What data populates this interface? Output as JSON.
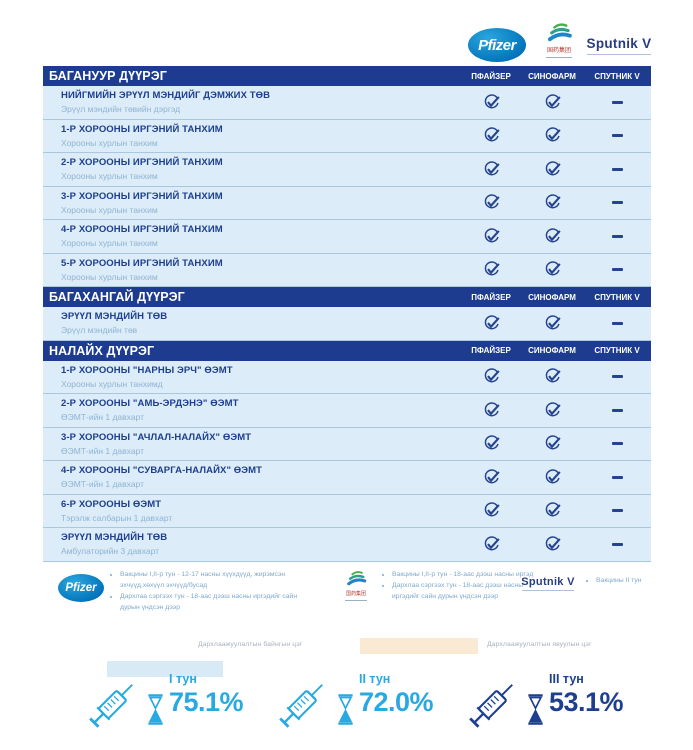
{
  "logos": {
    "pfizer": {
      "label": "Pfizer"
    },
    "sinopharm": {
      "label": "国药集团"
    },
    "sputnik": {
      "label": "Sputnik V"
    }
  },
  "columns": [
    "ПФАЙЗЕР",
    "СИНОФАРМ",
    "СПУТНИК V"
  ],
  "sections": [
    {
      "title": "БАГАНУУР ДҮҮРЭГ",
      "rows": [
        {
          "name": "НИЙГМИЙН ЭРҮҮЛ МЭНДИЙГ ДЭМЖИХ ТӨВ",
          "location": "Эрүүл мэндийн төвийн дэргэд",
          "pfizer": true,
          "sinopharm": true,
          "sputnik": false
        },
        {
          "name": "1-Р ХОРООНЫ ИРГЭНИЙ ТАНХИМ",
          "location": "Хорооны хурлын танхим",
          "pfizer": true,
          "sinopharm": true,
          "sputnik": false
        },
        {
          "name": "2-Р ХОРООНЫ ИРГЭНИЙ ТАНХИМ",
          "location": "Хорооны хурлын танхим",
          "pfizer": true,
          "sinopharm": true,
          "sputnik": false
        },
        {
          "name": "3-Р ХОРООНЫ ИРГЭНИЙ ТАНХИМ",
          "location": "Хорооны хурлын танхим",
          "pfizer": true,
          "sinopharm": true,
          "sputnik": false
        },
        {
          "name": "4-Р ХОРООНЫ ИРГЭНИЙ ТАНХИМ",
          "location": "Хорооны хурлын танхим",
          "pfizer": true,
          "sinopharm": true,
          "sputnik": false
        },
        {
          "name": "5-Р ХОРООНЫ ИРГЭНИЙ ТАНХИМ",
          "location": "Хорооны хурлын танхим",
          "pfizer": true,
          "sinopharm": true,
          "sputnik": false
        }
      ]
    },
    {
      "title": "БАГАХАНГАЙ ДҮҮРЭГ",
      "rows": [
        {
          "name": "ЭРҮҮЛ МЭНДИЙН ТӨВ",
          "location": "Эрүүл мэндийн төв",
          "pfizer": true,
          "sinopharm": true,
          "sputnik": false
        }
      ]
    },
    {
      "title": "НАЛАЙХ ДҮҮРЭГ",
      "rows": [
        {
          "name": "1-Р ХОРООНЫ \"НАРНЫ ЭРЧ\" ӨЭМТ",
          "location": "Хорооны хурлын танхимд",
          "pfizer": true,
          "sinopharm": true,
          "sputnik": false
        },
        {
          "name": "2-Р ХОРООНЫ \"АМЬ-ЭРДЭНЭ\" ӨЭМТ",
          "location": "ӨЭМТ-ийн 1 давхарт",
          "pfizer": true,
          "sinopharm": true,
          "sputnik": false
        },
        {
          "name": "3-Р ХОРООНЫ \"АЧЛАЛ-НАЛАЙХ\" ӨЭМТ",
          "location": "ӨЭМТ-ийн 1 давхарт",
          "pfizer": true,
          "sinopharm": true,
          "sputnik": false
        },
        {
          "name": "4-Р ХОРООНЫ \"СУВАРГА-НАЛАЙХ\" ӨЭМТ",
          "location": "ӨЭМТ-ийн 1 давхарт",
          "pfizer": true,
          "sinopharm": true,
          "sputnik": false
        },
        {
          "name": "6-Р ХОРООНЫ ӨЭМТ",
          "location": "Тэрэлж салбарын 1 давхарт",
          "pfizer": true,
          "sinopharm": true,
          "sputnik": false
        },
        {
          "name": "ЭРҮҮЛ МЭНДИЙН ТӨВ",
          "location": "Амбулаторийн 3 давхарт",
          "pfizer": true,
          "sinopharm": true,
          "sputnik": false
        }
      ]
    }
  ],
  "legend": {
    "pfizer_bullets": [
      "Вакцины I,II-р тун - 12-17 насны хүүхдүүд, жирэмсэн эхчүүд,хөхүүл эхчүүд/бусад",
      "Дархлаа сэргээх тун - 18-аас дээш насны иргэдийг сайн дурын үндсэн дээр"
    ],
    "sinopharm_bullets": [
      "Вакцины I,II-р тун - 18-аас дээш насны иргэд",
      "Дархлаа сэргээх тун - 18-аас дээш насны иргэдийг сайн дурын үндсэн дээр"
    ],
    "sputnik_bullets": [
      "Вакцины II тун"
    ]
  },
  "point_types": {
    "permanent": {
      "label": "Дархлаажуулалтын байнгын цэг",
      "color": "#d9eaf7"
    },
    "mobile": {
      "label": "Дархлаажуулалтын явуулын цэг",
      "color": "#faead3"
    }
  },
  "doses": [
    {
      "label": "I тун",
      "value": "75.1%",
      "color": "#29a9e1"
    },
    {
      "label": "II тун",
      "value": "72.0%",
      "color": "#29a9e1"
    },
    {
      "label": "III тун",
      "value": "53.1%",
      "color": "#1e3f90"
    }
  ],
  "colors": {
    "header_bar": "#1e3c8f",
    "row_bg": "#dcecf8",
    "check": "#25438f",
    "site_name": "#1d3f8e",
    "site_location": "#8fb4d4",
    "accent_light_blue": "#29a9e1",
    "accent_navy": "#1e3f90",
    "pfizer_blue": "#0070b8",
    "sputnik_navy": "#2a3c80",
    "sinopharm_red": "#b63a32"
  }
}
